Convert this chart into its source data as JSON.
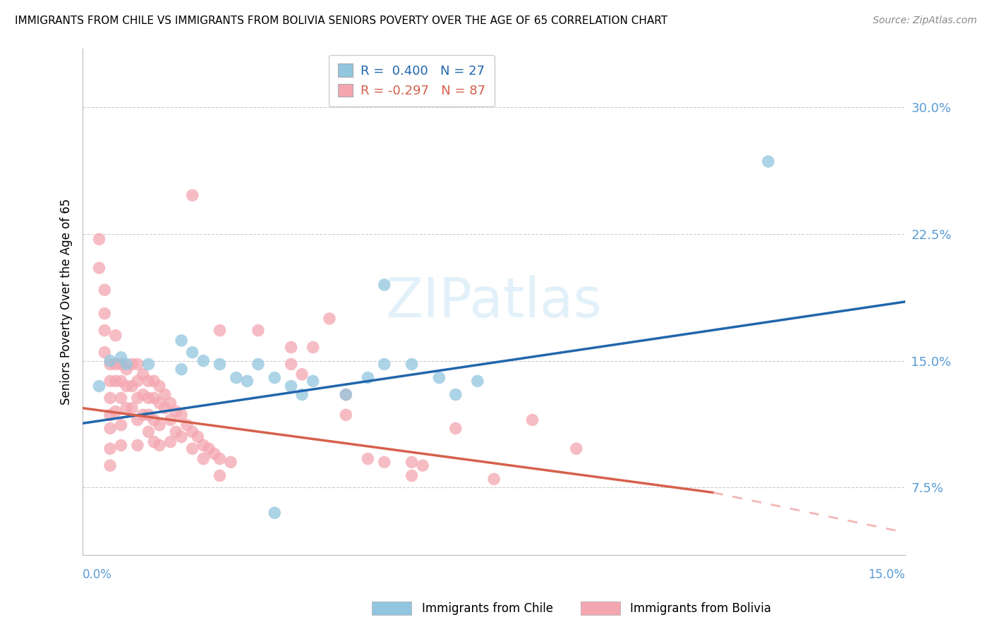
{
  "title": "IMMIGRANTS FROM CHILE VS IMMIGRANTS FROM BOLIVIA SENIORS POVERTY OVER THE AGE OF 65 CORRELATION CHART",
  "source": "Source: ZipAtlas.com",
  "ylabel": "Seniors Poverty Over the Age of 65",
  "ytick_vals": [
    0.075,
    0.15,
    0.225,
    0.3
  ],
  "xlim": [
    0.0,
    0.15
  ],
  "ylim": [
    0.035,
    0.335
  ],
  "legend_chile": "R =  0.400   N = 27",
  "legend_bolivia": "R = -0.297   N = 87",
  "chile_color": "#92c5de",
  "bolivia_color": "#f4a6b0",
  "chile_line_color": "#2166ac",
  "bolivia_line_color": "#d6604d",
  "bolivia_dash_color": "#f4b6b6",
  "watermark": "ZIPatlas",
  "chile_line": [
    0.0,
    0.113,
    0.15,
    0.185
  ],
  "bolivia_line_solid": [
    0.0,
    0.122,
    0.115,
    0.072
  ],
  "bolivia_line_dash": [
    0.115,
    0.072,
    0.155,
    0.045
  ],
  "chile_points": [
    [
      0.003,
      0.135
    ],
    [
      0.005,
      0.15
    ],
    [
      0.007,
      0.152
    ],
    [
      0.008,
      0.148
    ],
    [
      0.012,
      0.148
    ],
    [
      0.018,
      0.145
    ],
    [
      0.018,
      0.162
    ],
    [
      0.02,
      0.155
    ],
    [
      0.022,
      0.15
    ],
    [
      0.025,
      0.148
    ],
    [
      0.028,
      0.14
    ],
    [
      0.03,
      0.138
    ],
    [
      0.032,
      0.148
    ],
    [
      0.035,
      0.14
    ],
    [
      0.038,
      0.135
    ],
    [
      0.04,
      0.13
    ],
    [
      0.042,
      0.138
    ],
    [
      0.048,
      0.13
    ],
    [
      0.052,
      0.14
    ],
    [
      0.055,
      0.148
    ],
    [
      0.06,
      0.148
    ],
    [
      0.065,
      0.14
    ],
    [
      0.068,
      0.13
    ],
    [
      0.072,
      0.138
    ],
    [
      0.055,
      0.195
    ],
    [
      0.125,
      0.268
    ],
    [
      0.035,
      0.06
    ]
  ],
  "bolivia_points": [
    [
      0.003,
      0.205
    ],
    [
      0.003,
      0.222
    ],
    [
      0.004,
      0.192
    ],
    [
      0.004,
      0.178
    ],
    [
      0.004,
      0.168
    ],
    [
      0.004,
      0.155
    ],
    [
      0.005,
      0.148
    ],
    [
      0.005,
      0.138
    ],
    [
      0.005,
      0.128
    ],
    [
      0.005,
      0.118
    ],
    [
      0.005,
      0.11
    ],
    [
      0.005,
      0.098
    ],
    [
      0.005,
      0.088
    ],
    [
      0.006,
      0.165
    ],
    [
      0.006,
      0.148
    ],
    [
      0.006,
      0.138
    ],
    [
      0.006,
      0.12
    ],
    [
      0.007,
      0.148
    ],
    [
      0.007,
      0.138
    ],
    [
      0.007,
      0.128
    ],
    [
      0.007,
      0.112
    ],
    [
      0.007,
      0.1
    ],
    [
      0.008,
      0.145
    ],
    [
      0.008,
      0.135
    ],
    [
      0.008,
      0.122
    ],
    [
      0.009,
      0.148
    ],
    [
      0.009,
      0.135
    ],
    [
      0.009,
      0.122
    ],
    [
      0.01,
      0.148
    ],
    [
      0.01,
      0.138
    ],
    [
      0.01,
      0.128
    ],
    [
      0.01,
      0.115
    ],
    [
      0.01,
      0.1
    ],
    [
      0.011,
      0.142
    ],
    [
      0.011,
      0.13
    ],
    [
      0.011,
      0.118
    ],
    [
      0.012,
      0.138
    ],
    [
      0.012,
      0.128
    ],
    [
      0.012,
      0.118
    ],
    [
      0.012,
      0.108
    ],
    [
      0.013,
      0.138
    ],
    [
      0.013,
      0.128
    ],
    [
      0.013,
      0.115
    ],
    [
      0.013,
      0.102
    ],
    [
      0.014,
      0.135
    ],
    [
      0.014,
      0.125
    ],
    [
      0.014,
      0.112
    ],
    [
      0.014,
      0.1
    ],
    [
      0.015,
      0.13
    ],
    [
      0.015,
      0.122
    ],
    [
      0.016,
      0.125
    ],
    [
      0.016,
      0.115
    ],
    [
      0.016,
      0.102
    ],
    [
      0.017,
      0.12
    ],
    [
      0.017,
      0.108
    ],
    [
      0.018,
      0.118
    ],
    [
      0.018,
      0.105
    ],
    [
      0.019,
      0.112
    ],
    [
      0.02,
      0.108
    ],
    [
      0.02,
      0.098
    ],
    [
      0.021,
      0.105
    ],
    [
      0.022,
      0.1
    ],
    [
      0.022,
      0.092
    ],
    [
      0.023,
      0.098
    ],
    [
      0.024,
      0.095
    ],
    [
      0.025,
      0.092
    ],
    [
      0.025,
      0.082
    ],
    [
      0.027,
      0.09
    ],
    [
      0.02,
      0.248
    ],
    [
      0.025,
      0.168
    ],
    [
      0.032,
      0.168
    ],
    [
      0.038,
      0.158
    ],
    [
      0.038,
      0.148
    ],
    [
      0.04,
      0.142
    ],
    [
      0.042,
      0.158
    ],
    [
      0.045,
      0.175
    ],
    [
      0.048,
      0.13
    ],
    [
      0.048,
      0.118
    ],
    [
      0.052,
      0.092
    ],
    [
      0.055,
      0.09
    ],
    [
      0.06,
      0.082
    ],
    [
      0.06,
      0.09
    ],
    [
      0.062,
      0.088
    ],
    [
      0.068,
      0.11
    ],
    [
      0.082,
      0.115
    ],
    [
      0.09,
      0.098
    ],
    [
      0.075,
      0.08
    ]
  ]
}
